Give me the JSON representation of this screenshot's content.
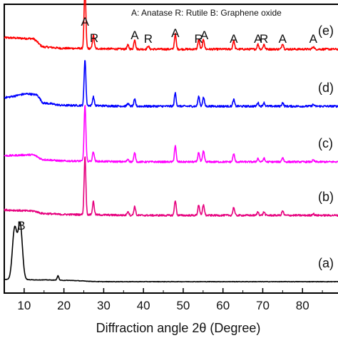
{
  "chart_data": {
    "type": "line",
    "title": "",
    "xlabel": "Diffraction angle 2θ (Degree)",
    "ylabel": "",
    "xlim": [
      5,
      90
    ],
    "x_ticks": [
      10,
      20,
      30,
      40,
      50,
      60,
      70,
      80
    ],
    "legend_text": "A: Anatase   R: Rutile   B: Graphene oxide",
    "series": [
      {
        "name": "(e)",
        "color": "#ff0000",
        "offset": 4,
        "background": [
          [
            5,
            0.26
          ],
          [
            12,
            0.24
          ],
          [
            15,
            0.05
          ],
          [
            20,
            0.02
          ],
          [
            40,
            0.0
          ],
          [
            90,
            0.0
          ]
        ],
        "noise": 0.045,
        "peaks": [
          [
            25.3,
            1.4
          ],
          [
            27.4,
            0.3
          ],
          [
            36.1,
            0.09
          ],
          [
            37.8,
            0.22
          ],
          [
            41.2,
            0.07
          ],
          [
            48.0,
            0.34
          ],
          [
            53.9,
            0.22
          ],
          [
            55.1,
            0.22
          ],
          [
            62.7,
            0.2
          ],
          [
            68.8,
            0.11
          ],
          [
            70.3,
            0.11
          ],
          [
            75.0,
            0.13
          ],
          [
            82.7,
            0.06
          ]
        ]
      },
      {
        "name": "(d)",
        "color": "#0000ff",
        "offset": 3,
        "background": [
          [
            5,
            0.2
          ],
          [
            11,
            0.28
          ],
          [
            13,
            0.26
          ],
          [
            15,
            0.07
          ],
          [
            20,
            0.02
          ],
          [
            40,
            0.0
          ],
          [
            90,
            0.0
          ]
        ],
        "noise": 0.045,
        "peaks": [
          [
            25.3,
            1.05
          ],
          [
            27.4,
            0.2
          ],
          [
            36.1,
            0.06
          ],
          [
            37.8,
            0.15
          ],
          [
            48.0,
            0.3
          ],
          [
            53.9,
            0.22
          ],
          [
            55.1,
            0.2
          ],
          [
            62.7,
            0.15
          ],
          [
            68.8,
            0.08
          ],
          [
            70.3,
            0.08
          ],
          [
            75.0,
            0.08
          ],
          [
            82.7,
            0.04
          ]
        ]
      },
      {
        "name": "(c)",
        "color": "#ff00ff",
        "offset": 2,
        "background": [
          [
            5,
            0.14
          ],
          [
            12,
            0.16
          ],
          [
            15,
            0.05
          ],
          [
            20,
            0.02
          ],
          [
            40,
            0.0
          ],
          [
            90,
            0.0
          ]
        ],
        "noise": 0.04,
        "peaks": [
          [
            25.3,
            1.28
          ],
          [
            27.4,
            0.22
          ],
          [
            36.1,
            0.06
          ],
          [
            37.8,
            0.2
          ],
          [
            48.0,
            0.36
          ],
          [
            53.9,
            0.22
          ],
          [
            55.1,
            0.24
          ],
          [
            62.7,
            0.18
          ],
          [
            68.8,
            0.08
          ],
          [
            70.3,
            0.08
          ],
          [
            75.0,
            0.1
          ],
          [
            82.7,
            0.04
          ]
        ]
      },
      {
        "name": "(b)",
        "color": "#e6007e",
        "offset": 1,
        "background": [
          [
            5,
            0.12
          ],
          [
            12,
            0.1
          ],
          [
            15,
            0.04
          ],
          [
            20,
            0.02
          ],
          [
            40,
            0.0
          ],
          [
            90,
            0.0
          ]
        ],
        "noise": 0.04,
        "peaks": [
          [
            25.3,
            1.32
          ],
          [
            27.4,
            0.3
          ],
          [
            36.1,
            0.09
          ],
          [
            37.8,
            0.2
          ],
          [
            48.0,
            0.34
          ],
          [
            53.9,
            0.24
          ],
          [
            55.1,
            0.24
          ],
          [
            62.7,
            0.18
          ],
          [
            68.8,
            0.08
          ],
          [
            70.3,
            0.08
          ],
          [
            75.0,
            0.1
          ],
          [
            82.7,
            0.04
          ]
        ]
      },
      {
        "name": "(a)",
        "color": "#000000",
        "offset": 0,
        "background": [
          [
            5,
            0.05
          ],
          [
            15,
            0.04
          ],
          [
            20,
            0.03
          ],
          [
            30,
            0.0
          ],
          [
            90,
            0.0
          ]
        ],
        "noise": 0.01,
        "peaks": [
          [
            7.6,
            1.15
          ],
          [
            9.0,
            1.25
          ],
          [
            18.5,
            0.1
          ]
        ]
      }
    ],
    "peak_labels": [
      {
        "text": "A",
        "x": 25.3
      },
      {
        "text": "R",
        "x": 27.6
      },
      {
        "text": "A",
        "x": 37.8
      },
      {
        "text": "R",
        "x": 41.2
      },
      {
        "text": "A",
        "x": 48.0
      },
      {
        "text": "R",
        "x": 53.9
      },
      {
        "text": "A",
        "x": 55.3
      },
      {
        "text": "A",
        "x": 62.7
      },
      {
        "text": "A",
        "x": 68.8
      },
      {
        "text": "R",
        "x": 70.3
      },
      {
        "text": "A",
        "x": 75.0
      },
      {
        "text": "A",
        "x": 82.7
      },
      {
        "text": "B",
        "x": 9.3
      }
    ]
  }
}
